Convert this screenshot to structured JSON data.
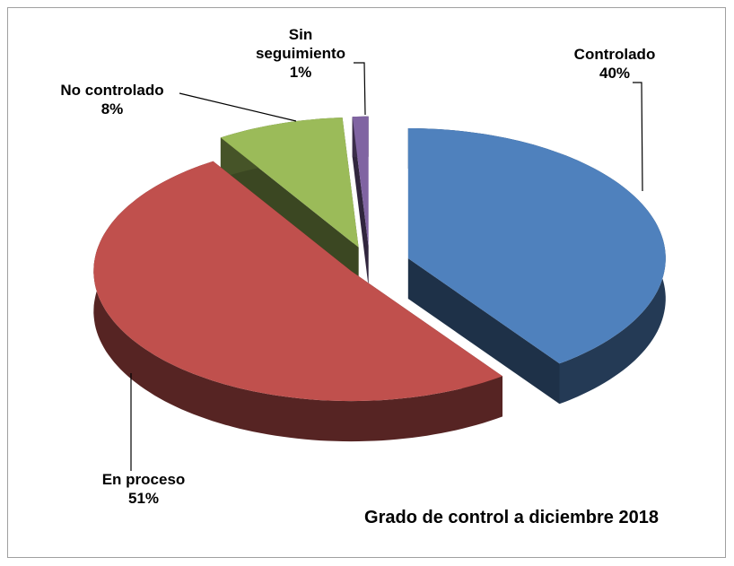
{
  "chart_data": {
    "type": "pie",
    "title": "Grado de control a diciembre 2018",
    "categories": [
      "Controlado",
      "En proceso",
      "No controlado",
      "Sin seguimiento"
    ],
    "values": [
      40,
      51,
      8,
      1
    ],
    "value_labels": [
      "40%",
      "51%",
      "8%",
      "1%"
    ],
    "colors": [
      "#4f81bd",
      "#c0504d",
      "#9bbb59",
      "#8064a2"
    ]
  }
}
